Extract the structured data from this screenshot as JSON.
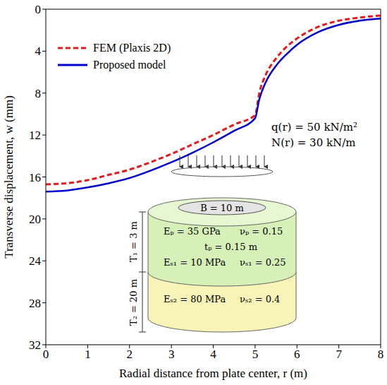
{
  "chart_data": {
    "type": "line",
    "x_label": "Radial distance from plate center, r (m)",
    "y_label": "Transverse displacement, w (mm)",
    "xlim": [
      0,
      8
    ],
    "xticks": [
      0,
      1,
      2,
      3,
      4,
      5,
      6,
      7,
      8
    ],
    "ylim": [
      32,
      0
    ],
    "yticks": [
      0,
      4,
      8,
      12,
      16,
      20,
      24,
      28,
      32
    ],
    "legend": "upper left",
    "x": [
      0,
      0.5,
      1,
      1.5,
      2,
      2.5,
      3,
      3.5,
      4,
      4.5,
      5,
      5.1,
      5.25,
      5.5,
      5.75,
      6,
      6.5,
      7,
      7.5,
      8
    ],
    "series": [
      {
        "name": "FEM (Plaxis 2D)",
        "color": "#e41a1c",
        "line_style": "dashed",
        "values": [
          16.7,
          16.6,
          16.3,
          15.8,
          15.3,
          14.6,
          13.8,
          12.9,
          12.0,
          11.0,
          10.1,
          8.0,
          6.3,
          4.7,
          3.6,
          2.8,
          1.7,
          1.1,
          0.8,
          0.6
        ]
      },
      {
        "name": "Proposed model",
        "color": "#0000cc",
        "line_style": "solid",
        "values": [
          17.4,
          17.3,
          17.0,
          16.6,
          16.1,
          15.4,
          14.6,
          13.7,
          12.7,
          11.6,
          10.4,
          8.6,
          7.0,
          5.4,
          4.3,
          3.4,
          2.2,
          1.5,
          1.1,
          0.9
        ]
      }
    ],
    "annotations": {
      "load_q": "q(r) = 50 kN/m²",
      "load_n": "N(r) = 30 kN/m",
      "plate_b": "B = 10 m",
      "plate_e": "Eₚ = 35 GPa",
      "plate_nu": "νₚ = 0.15",
      "plate_t": "tₚ = 0.15 m",
      "soil1_e": "Eₛ₁ = 10 MPa",
      "soil1_nu": "νₛ₁ = 0.25",
      "soil2_e": "Eₛ₂ = 80 MPa",
      "soil2_nu": "νₛ₂ = 0.4",
      "t1": "T₁ = 3 m",
      "t2": "T₂ = 20 m"
    }
  }
}
